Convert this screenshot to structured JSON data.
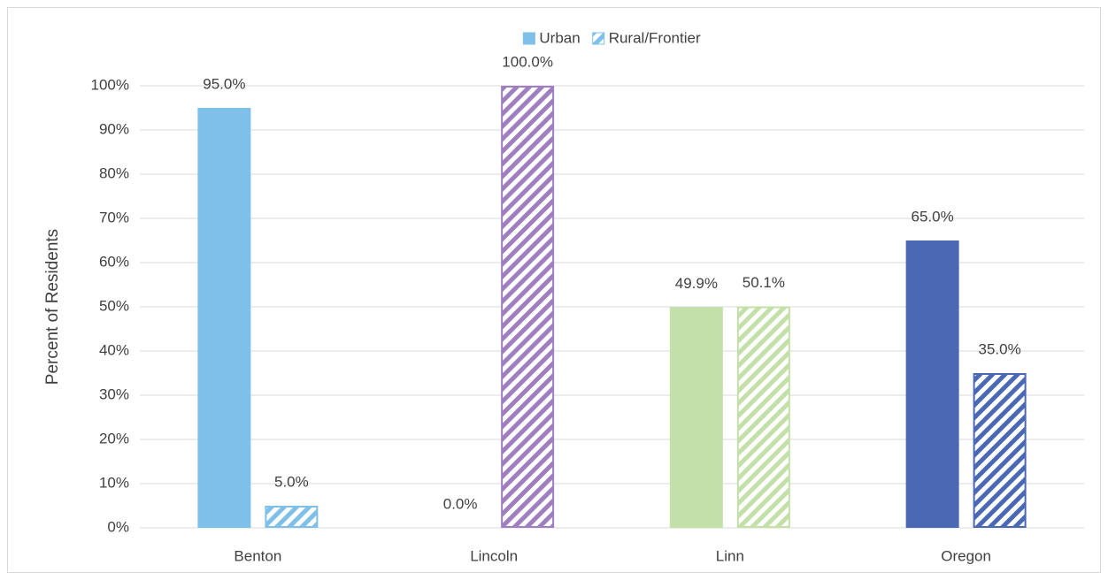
{
  "chart_data": {
    "type": "bar",
    "y_label": "Percent of Residents",
    "categories": [
      "Benton",
      "Lincoln",
      "Linn",
      "Oregon"
    ],
    "category_colors": [
      "#7fc0e8",
      "#a07fc0",
      "#c3e0a8",
      "#4a68b4"
    ],
    "series": [
      {
        "name": "Urban",
        "color": "#7fc0e8",
        "pattern": "solid",
        "values": [
          95.0,
          0.0,
          49.9,
          65.0
        ],
        "value_labels": [
          "95.0%",
          "0.0%",
          "49.9%",
          "65.0%"
        ]
      },
      {
        "name": "Rural/Frontier",
        "color": "#7fc0e8",
        "pattern": "hatched",
        "values": [
          5.0,
          100.0,
          50.1,
          35.0
        ],
        "value_labels": [
          "5.0%",
          "100.0%",
          "50.1%",
          "35.0%"
        ]
      }
    ],
    "ylim": [
      0,
      100
    ],
    "yticks": [
      {
        "value": 0,
        "label": "0%"
      },
      {
        "value": 10,
        "label": "10%"
      },
      {
        "value": 20,
        "label": "20%"
      },
      {
        "value": 30,
        "label": "30%"
      },
      {
        "value": 40,
        "label": "40%"
      },
      {
        "value": 50,
        "label": "50%"
      },
      {
        "value": 60,
        "label": "60%"
      },
      {
        "value": 70,
        "label": "70%"
      },
      {
        "value": 80,
        "label": "80%"
      },
      {
        "value": 90,
        "label": "90%"
      },
      {
        "value": 100,
        "label": "100%"
      }
    ],
    "grid": true,
    "legend": "top"
  }
}
